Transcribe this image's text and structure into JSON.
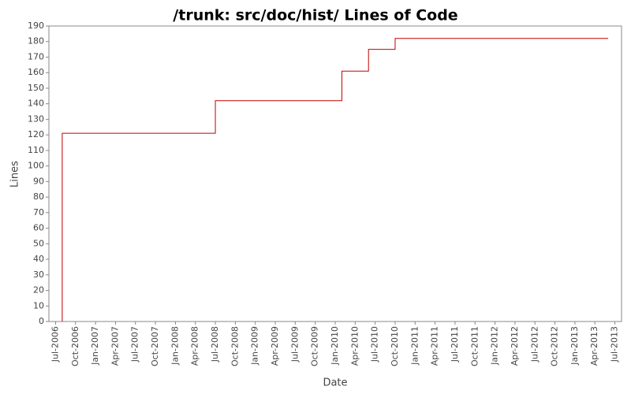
{
  "chart_data": {
    "type": "step",
    "title": "/trunk: src/doc/hist/ Lines of Code",
    "x_label": "Date",
    "y_label": "Lines",
    "x": [
      "2006-08",
      "2008-07",
      "2010-02",
      "2010-06",
      "2010-10",
      "2013-06"
    ],
    "series": [
      {
        "name": "Lines",
        "color": "#c00000",
        "values": [
          121,
          142,
          161,
          175,
          182,
          182
        ]
      }
    ],
    "xlim": [
      "2006-06",
      "2013-08"
    ],
    "ylim": [
      0,
      190
    ],
    "yticks": [
      0,
      10,
      20,
      30,
      40,
      50,
      60,
      70,
      80,
      90,
      100,
      110,
      120,
      130,
      140,
      150,
      160,
      170,
      180,
      190
    ],
    "xticks": [
      {
        "value": "2006-07",
        "label": "Jul-2006"
      },
      {
        "value": "2006-10",
        "label": "Oct-2006"
      },
      {
        "value": "2007-01",
        "label": "Jan-2007"
      },
      {
        "value": "2007-04",
        "label": "Apr-2007"
      },
      {
        "value": "2007-07",
        "label": "Jul-2007"
      },
      {
        "value": "2007-10",
        "label": "Oct-2007"
      },
      {
        "value": "2008-01",
        "label": "Jan-2008"
      },
      {
        "value": "2008-04",
        "label": "Apr-2008"
      },
      {
        "value": "2008-07",
        "label": "Jul-2008"
      },
      {
        "value": "2008-10",
        "label": "Oct-2008"
      },
      {
        "value": "2009-01",
        "label": "Jan-2009"
      },
      {
        "value": "2009-04",
        "label": "Apr-2009"
      },
      {
        "value": "2009-07",
        "label": "Jul-2009"
      },
      {
        "value": "2009-10",
        "label": "Oct-2009"
      },
      {
        "value": "2010-01",
        "label": "Jan-2010"
      },
      {
        "value": "2010-04",
        "label": "Apr-2010"
      },
      {
        "value": "2010-07",
        "label": "Jul-2010"
      },
      {
        "value": "2010-10",
        "label": "Oct-2010"
      },
      {
        "value": "2011-01",
        "label": "Jan-2011"
      },
      {
        "value": "2011-04",
        "label": "Apr-2011"
      },
      {
        "value": "2011-07",
        "label": "Jul-2011"
      },
      {
        "value": "2011-10",
        "label": "Oct-2011"
      },
      {
        "value": "2012-01",
        "label": "Jan-2012"
      },
      {
        "value": "2012-04",
        "label": "Apr-2012"
      },
      {
        "value": "2012-07",
        "label": "Jul-2012"
      },
      {
        "value": "2012-10",
        "label": "Oct-2012"
      },
      {
        "value": "2013-01",
        "label": "Jan-2013"
      },
      {
        "value": "2013-04",
        "label": "Apr-2013"
      },
      {
        "value": "2013-07",
        "label": "Jul-2013"
      }
    ]
  }
}
